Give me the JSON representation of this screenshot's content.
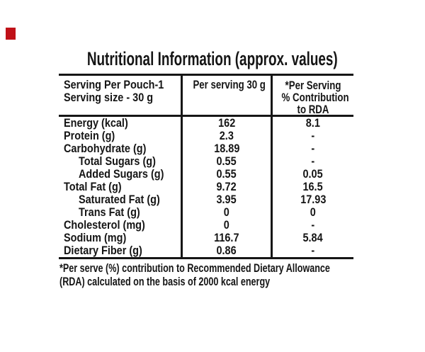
{
  "title": "Nutritional Information (approx. values)",
  "marker": {
    "color": "#c01118"
  },
  "ink_color": "#151515",
  "table": {
    "header": {
      "col1_line1": "Serving Per Pouch-1",
      "col1_line2": "Serving size - 30 g",
      "col2": "Per serving 30 g",
      "col3_line1": "*Per Serving",
      "col3_line2": "% Contribution",
      "col3_line3": "to RDA"
    },
    "rows": [
      {
        "label": "Energy (kcal)",
        "indent": false,
        "per_serving": "162",
        "rda": "8.1"
      },
      {
        "label": "Protein (g)",
        "indent": false,
        "per_serving": "2.3",
        "rda": "-"
      },
      {
        "label": "Carbohydrate (g)",
        "indent": false,
        "per_serving": "18.89",
        "rda": "-"
      },
      {
        "label": "Total Sugars (g)",
        "indent": true,
        "per_serving": "0.55",
        "rda": "-"
      },
      {
        "label": "Added Sugars (g)",
        "indent": true,
        "per_serving": "0.55",
        "rda": "0.05"
      },
      {
        "label": "Total Fat (g)",
        "indent": false,
        "per_serving": "9.72",
        "rda": "16.5"
      },
      {
        "label": "Saturated Fat (g)",
        "indent": true,
        "per_serving": "3.95",
        "rda": "17.93"
      },
      {
        "label": "Trans Fat (g)",
        "indent": true,
        "per_serving": "0",
        "rda": "0"
      },
      {
        "label": "Cholesterol (mg)",
        "indent": false,
        "per_serving": "0",
        "rda": "-"
      },
      {
        "label": "Sodium (mg)",
        "indent": false,
        "per_serving": "116.7",
        "rda": "5.84"
      },
      {
        "label": "Dietary Fiber (g)",
        "indent": false,
        "per_serving": "0.86",
        "rda": "-"
      }
    ]
  },
  "footnote": {
    "line1": "*Per serve (%) contribution to Recommended Dietary Allowance",
    "line2": "(RDA) calculated on the basis of 2000 kcal energy"
  }
}
